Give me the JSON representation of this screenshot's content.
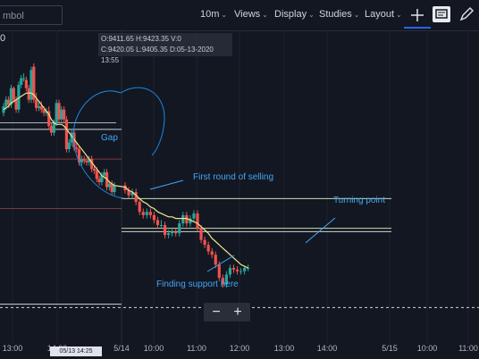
{
  "toolbar": {
    "symbol_placeholder": "mbol",
    "interval": "10m",
    "views": "Views",
    "display": "Display",
    "studies": "Studies",
    "layout": "Layout",
    "chevron": "⌵"
  },
  "info": {
    "line1": "O:9411.65  H:9423.35  V:0",
    "line2": "C:9420.05  L:9405.35  D:05-13-2020 13:55"
  },
  "left_edge_value": "0",
  "annotations": {
    "gap": "Gap",
    "first_round": "First round of selling",
    "turning_point": "Turning point",
    "support": "Finding support here"
  },
  "zoom": {
    "minus": "−",
    "plus": "+"
  },
  "crosshair_date": "05/13 14:25",
  "colors": {
    "background": "#131722",
    "up": "#26a69a",
    "down": "#ef5350",
    "ma": "#f0e68c",
    "annotation": "#42a5f5"
  },
  "chart_data": {
    "type": "line",
    "title": "",
    "xlabel": "",
    "ylabel": "",
    "x_ticks": [
      "13:00",
      "14:00",
      "5/14",
      "10:00",
      "11:00",
      "12:00",
      "13:00",
      "14:00",
      "5/15",
      "10:00",
      "11:00"
    ],
    "candle_series": {
      "name": "",
      "open": [
        110,
        114,
        118,
        115,
        125,
        118,
        112,
        127,
        131,
        130,
        125,
        118,
        138,
        118,
        113,
        114,
        112,
        110,
        111,
        102,
        98,
        104,
        116,
        106,
        112,
        106,
        88,
        92,
        98,
        89,
        88,
        80,
        82,
        81,
        80,
        82,
        76,
        75,
        70,
        68,
        72,
        74,
        65,
        67,
        62,
        66,
        63,
        60,
        62,
        56,
        50,
        48,
        50,
        48,
        45,
        42,
        42,
        36,
        37,
        38,
        37,
        43,
        48,
        43,
        46,
        49,
        40,
        33,
        30,
        26,
        24,
        18,
        10,
        6,
        12,
        16,
        15,
        14,
        14,
        16
      ],
      "close": [
        114,
        118,
        115,
        125,
        118,
        112,
        127,
        131,
        131,
        125,
        118,
        136,
        118,
        113,
        114,
        112,
        110,
        111,
        102,
        98,
        104,
        116,
        106,
        112,
        106,
        88,
        92,
        98,
        89,
        88,
        80,
        82,
        81,
        80,
        82,
        76,
        75,
        70,
        68,
        72,
        74,
        65,
        67,
        62,
        66,
        63,
        60,
        62,
        56,
        50,
        48,
        50,
        48,
        45,
        42,
        42,
        36,
        37,
        38,
        37,
        43,
        48,
        43,
        46,
        49,
        40,
        33,
        30,
        26,
        24,
        18,
        10,
        6,
        12,
        16,
        15,
        14,
        14,
        16,
        16
      ],
      "high": [
        116,
        120,
        120,
        127,
        126,
        120,
        129,
        133,
        134,
        132,
        127,
        138,
        140,
        122,
        117,
        117,
        114,
        113,
        114,
        104,
        106,
        118,
        118,
        114,
        114,
        108,
        94,
        100,
        100,
        92,
        90,
        84,
        84,
        83,
        84,
        84,
        78,
        77,
        72,
        74,
        76,
        76,
        69,
        69,
        68,
        68,
        65,
        64,
        64,
        58,
        52,
        52,
        52,
        50,
        47,
        45,
        44,
        39,
        40,
        40,
        45,
        50,
        50,
        48,
        51,
        51,
        42,
        35,
        32,
        28,
        26,
        20,
        12,
        14,
        18,
        18,
        17,
        16,
        17,
        18
      ],
      "low": [
        108,
        112,
        113,
        113,
        116,
        110,
        110,
        125,
        129,
        123,
        116,
        116,
        116,
        111,
        111,
        110,
        108,
        108,
        100,
        96,
        96,
        102,
        104,
        104,
        104,
        86,
        86,
        90,
        87,
        86,
        78,
        78,
        79,
        78,
        78,
        74,
        73,
        68,
        66,
        66,
        70,
        63,
        63,
        60,
        60,
        61,
        58,
        58,
        54,
        48,
        46,
        46,
        46,
        43,
        40,
        40,
        34,
        34,
        35,
        35,
        35,
        41,
        41,
        41,
        44,
        38,
        31,
        28,
        24,
        22,
        16,
        8,
        4,
        4,
        10,
        13,
        12,
        12,
        12,
        14
      ],
      "gap_after_index": 44
    },
    "ma_series": {
      "name": "",
      "values": [
        112,
        113,
        114,
        116,
        117,
        118,
        119,
        120,
        121,
        122,
        122,
        122,
        121,
        119,
        117,
        115,
        113,
        111,
        109,
        106,
        104,
        103,
        103,
        103,
        102,
        100,
        98,
        96,
        94,
        92,
        90,
        88,
        86,
        84,
        82,
        80,
        78,
        76,
        74,
        72,
        71,
        70,
        68,
        67,
        66,
        65,
        63,
        62,
        60,
        58,
        56,
        55,
        53,
        52,
        50,
        49,
        48,
        47,
        47,
        46,
        46,
        46,
        46,
        45,
        44,
        43,
        41,
        39,
        37,
        34,
        32,
        30,
        28,
        26,
        24,
        22,
        20,
        18,
        17,
        16
      ]
    },
    "horizontal_levels": [
      {
        "value": 100,
        "color": "#d1d4dc"
      },
      {
        "value": 58,
        "color": "#c5e1a5"
      },
      {
        "value": 40,
        "color": "#c5e1a5"
      },
      {
        "value": -8,
        "color": "#d1d4dc"
      }
    ],
    "ylim": [
      -30,
      160
    ],
    "grid": true,
    "legend": "none"
  }
}
